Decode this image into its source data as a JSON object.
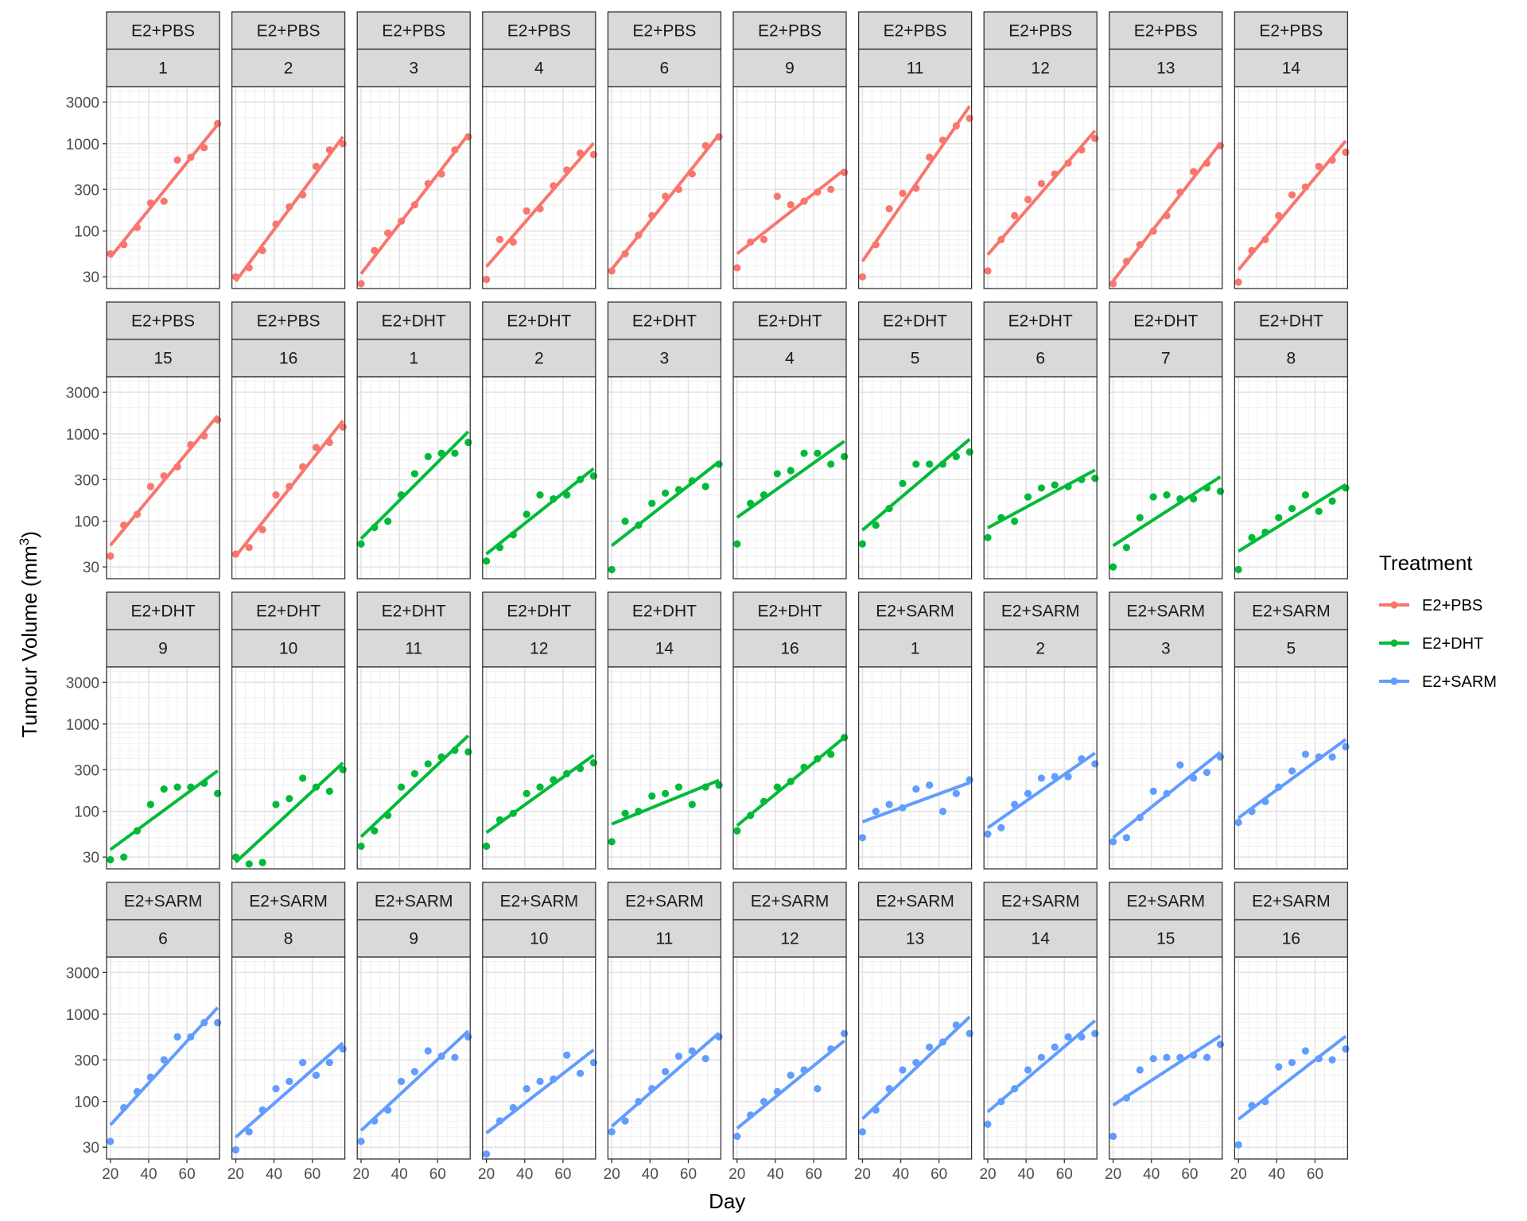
{
  "chart_data": {
    "type": "scatter",
    "subtype": "faceted scatter with per-panel linear fit on log10 y scale",
    "xlabel": "Day",
    "ylabel_prefix": "Tumour Volume (mm",
    "ylabel_superscript": "3",
    "ylabel_suffix": ")",
    "y_scale": "log10",
    "ylim": [
      22,
      4500
    ],
    "y_ticks": [
      30,
      100,
      300,
      1000,
      3000
    ],
    "y_tick_labels": [
      "30",
      "100",
      "300",
      "1000",
      "3000"
    ],
    "xlim": [
      18,
      77
    ],
    "x_ticks": [
      20,
      40,
      60
    ],
    "x_tick_labels": [
      "20",
      "40",
      "60"
    ],
    "days": [
      20,
      27,
      34,
      41,
      48,
      55,
      62,
      69,
      76
    ],
    "grid": true,
    "panel_background": "#ffffff",
    "strip_fill": "#d9d9d9",
    "layout": {
      "rows": 4,
      "cols": 10
    },
    "legend": {
      "title": "Treatment",
      "position": "right",
      "entries": [
        {
          "label": "E2+PBS",
          "color": "#F8766D"
        },
        {
          "label": "E2+DHT",
          "color": "#00BA38"
        },
        {
          "label": "E2+SARM",
          "color": "#619CFF"
        }
      ]
    },
    "panels": [
      {
        "treatment": "E2+PBS",
        "id": "1",
        "values": [
          55,
          70,
          110,
          210,
          220,
          650,
          700,
          900,
          1700
        ]
      },
      {
        "treatment": "E2+PBS",
        "id": "2",
        "values": [
          30,
          38,
          60,
          120,
          190,
          260,
          550,
          850,
          1000
        ]
      },
      {
        "treatment": "E2+PBS",
        "id": "3",
        "values": [
          25,
          60,
          95,
          130,
          200,
          350,
          450,
          850,
          1200
        ]
      },
      {
        "treatment": "E2+PBS",
        "id": "4",
        "values": [
          28,
          80,
          75,
          170,
          180,
          330,
          500,
          780,
          750
        ]
      },
      {
        "treatment": "E2+PBS",
        "id": "6",
        "values": [
          35,
          55,
          90,
          150,
          250,
          300,
          450,
          950,
          1200
        ]
      },
      {
        "treatment": "E2+PBS",
        "id": "9",
        "values": [
          38,
          75,
          80,
          250,
          200,
          220,
          280,
          300,
          470
        ]
      },
      {
        "treatment": "E2+PBS",
        "id": "11",
        "values": [
          30,
          70,
          180,
          270,
          310,
          700,
          1100,
          1600,
          1950
        ]
      },
      {
        "treatment": "E2+PBS",
        "id": "12",
        "values": [
          35,
          80,
          150,
          230,
          350,
          450,
          600,
          850,
          1150
        ]
      },
      {
        "treatment": "E2+PBS",
        "id": "13",
        "values": [
          25,
          45,
          70,
          100,
          150,
          280,
          480,
          600,
          950
        ]
      },
      {
        "treatment": "E2+PBS",
        "id": "14",
        "values": [
          26,
          60,
          80,
          150,
          260,
          320,
          550,
          650,
          800
        ]
      },
      {
        "treatment": "E2+PBS",
        "id": "15",
        "values": [
          40,
          90,
          120,
          250,
          330,
          420,
          750,
          950,
          1450
        ]
      },
      {
        "treatment": "E2+PBS",
        "id": "16",
        "values": [
          42,
          50,
          80,
          200,
          250,
          420,
          700,
          800,
          1200
        ]
      },
      {
        "treatment": "E2+DHT",
        "id": "1",
        "values": [
          55,
          85,
          100,
          200,
          350,
          550,
          600,
          600,
          800
        ]
      },
      {
        "treatment": "E2+DHT",
        "id": "2",
        "values": [
          35,
          50,
          70,
          120,
          200,
          180,
          200,
          300,
          330
        ]
      },
      {
        "treatment": "E2+DHT",
        "id": "3",
        "values": [
          28,
          100,
          90,
          160,
          210,
          230,
          290,
          250,
          450
        ]
      },
      {
        "treatment": "E2+DHT",
        "id": "4",
        "values": [
          55,
          160,
          200,
          350,
          380,
          600,
          600,
          450,
          550
        ]
      },
      {
        "treatment": "E2+DHT",
        "id": "5",
        "values": [
          55,
          90,
          140,
          270,
          450,
          450,
          450,
          550,
          620
        ]
      },
      {
        "treatment": "E2+DHT",
        "id": "6",
        "values": [
          65,
          110,
          100,
          190,
          240,
          260,
          250,
          300,
          310
        ]
      },
      {
        "treatment": "E2+DHT",
        "id": "7",
        "values": [
          30,
          50,
          110,
          190,
          200,
          180,
          180,
          240,
          220
        ]
      },
      {
        "treatment": "E2+DHT",
        "id": "8",
        "values": [
          28,
          65,
          75,
          110,
          140,
          200,
          130,
          170,
          240
        ]
      },
      {
        "treatment": "E2+DHT",
        "id": "9",
        "values": [
          28,
          30,
          60,
          120,
          180,
          190,
          190,
          210,
          160
        ]
      },
      {
        "treatment": "E2+DHT",
        "id": "10",
        "values": [
          30,
          25,
          26,
          120,
          140,
          240,
          190,
          170,
          300
        ]
      },
      {
        "treatment": "E2+DHT",
        "id": "11",
        "values": [
          40,
          60,
          90,
          190,
          270,
          350,
          420,
          500,
          480
        ]
      },
      {
        "treatment": "E2+DHT",
        "id": "12",
        "values": [
          40,
          80,
          95,
          160,
          190,
          230,
          270,
          310,
          360
        ]
      },
      {
        "treatment": "E2+DHT",
        "id": "14",
        "values": [
          45,
          95,
          100,
          150,
          160,
          190,
          120,
          190,
          200
        ]
      },
      {
        "treatment": "E2+DHT",
        "id": "16",
        "values": [
          60,
          90,
          130,
          190,
          220,
          320,
          400,
          450,
          700
        ]
      },
      {
        "treatment": "E2+SARM",
        "id": "1",
        "values": [
          50,
          100,
          120,
          110,
          180,
          200,
          100,
          160,
          230
        ]
      },
      {
        "treatment": "E2+SARM",
        "id": "2",
        "values": [
          55,
          65,
          120,
          160,
          240,
          250,
          250,
          400,
          350
        ]
      },
      {
        "treatment": "E2+SARM",
        "id": "3",
        "values": [
          45,
          50,
          85,
          170,
          160,
          340,
          240,
          280,
          420
        ]
      },
      {
        "treatment": "E2+SARM",
        "id": "5",
        "values": [
          75,
          100,
          130,
          190,
          290,
          450,
          420,
          420,
          550
        ]
      },
      {
        "treatment": "E2+SARM",
        "id": "6",
        "values": [
          35,
          85,
          130,
          190,
          300,
          550,
          550,
          800,
          800
        ]
      },
      {
        "treatment": "E2+SARM",
        "id": "8",
        "values": [
          28,
          45,
          80,
          140,
          170,
          280,
          200,
          280,
          400
        ]
      },
      {
        "treatment": "E2+SARM",
        "id": "9",
        "values": [
          35,
          60,
          80,
          170,
          220,
          380,
          330,
          320,
          550
        ]
      },
      {
        "treatment": "E2+SARM",
        "id": "10",
        "values": [
          25,
          60,
          85,
          140,
          170,
          180,
          340,
          210,
          280
        ]
      },
      {
        "treatment": "E2+SARM",
        "id": "11",
        "values": [
          45,
          60,
          100,
          140,
          220,
          330,
          380,
          310,
          550
        ]
      },
      {
        "treatment": "E2+SARM",
        "id": "12",
        "values": [
          40,
          70,
          100,
          130,
          200,
          230,
          140,
          400,
          600
        ]
      },
      {
        "treatment": "E2+SARM",
        "id": "13",
        "values": [
          45,
          80,
          140,
          230,
          280,
          420,
          480,
          750,
          600
        ]
      },
      {
        "treatment": "E2+SARM",
        "id": "14",
        "values": [
          55,
          100,
          140,
          230,
          320,
          420,
          550,
          550,
          600
        ]
      },
      {
        "treatment": "E2+SARM",
        "id": "15",
        "values": [
          40,
          110,
          230,
          310,
          320,
          320,
          340,
          320,
          450
        ]
      },
      {
        "treatment": "E2+SARM",
        "id": "16",
        "values": [
          32,
          90,
          100,
          250,
          280,
          380,
          310,
          300,
          400
        ]
      }
    ]
  }
}
